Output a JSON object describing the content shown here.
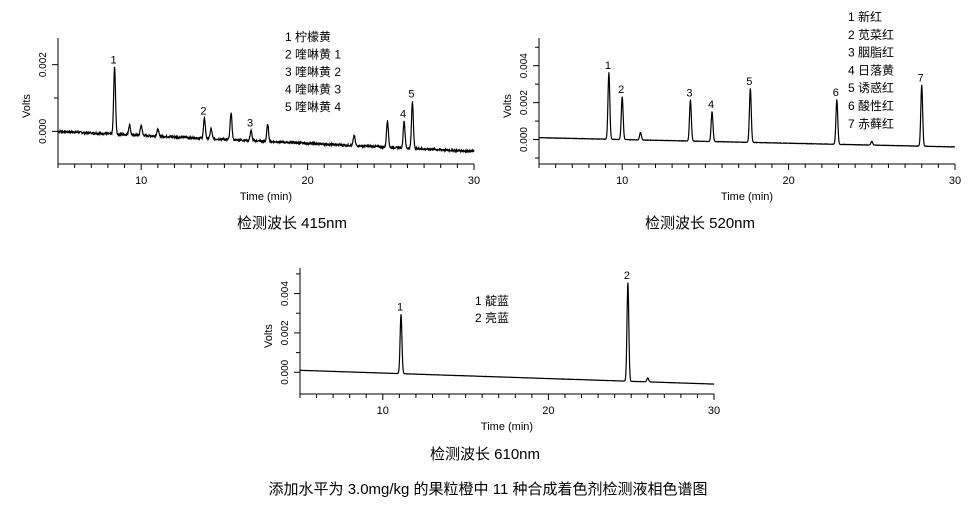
{
  "figure_caption": "添加水平为 3.0mg/kg 的果粒橙中 11 种合成着色剂检测液相色谱图",
  "chart_data": [
    {
      "type": "line",
      "caption": "检测波长 415nm",
      "xlabel": "Time (min)",
      "ylabel": "Volts",
      "xlim": [
        5,
        30
      ],
      "ylim": [
        -0.0008,
        0.0028
      ],
      "xticks": [
        10,
        20,
        30
      ],
      "xtick_labels": [
        "10",
        "20",
        "30"
      ],
      "yticks": [
        0,
        0.002
      ],
      "ytick_labels": [
        "0.000",
        "0.002"
      ],
      "baseline": {
        "x": [
          5,
          30
        ],
        "y": [
          0,
          -0.0006
        ]
      },
      "peaks": [
        {
          "label": "1",
          "x": 8.4,
          "height": 0.002
        },
        {
          "label": "",
          "x": 9.3,
          "height": 0.0003
        },
        {
          "label": "",
          "x": 10.0,
          "height": 0.0003
        },
        {
          "label": "",
          "x": 11.0,
          "height": 0.0002
        },
        {
          "label": "2",
          "x": 13.8,
          "height": 0.0006
        },
        {
          "label": "",
          "x": 14.2,
          "height": 0.0003
        },
        {
          "label": "",
          "x": 15.4,
          "height": 0.0008
        },
        {
          "label": "3",
          "x": 16.6,
          "height": 0.0003
        },
        {
          "label": "",
          "x": 17.6,
          "height": 0.0005
        },
        {
          "label": "",
          "x": 22.8,
          "height": 0.0003
        },
        {
          "label": "",
          "x": 24.8,
          "height": 0.0008
        },
        {
          "label": "4",
          "x": 25.8,
          "height": 0.0008
        },
        {
          "label": "5",
          "x": 26.3,
          "height": 0.0014
        }
      ],
      "legend": [
        "1 柠檬黄",
        "2 喹啉黄 1",
        "3 喹啉黄 2",
        "4 喹啉黄 3",
        "5 喹啉黄 4"
      ],
      "legend_position": "top-center",
      "noise": 3e-05
    },
    {
      "type": "line",
      "caption": "检测波长 520nm",
      "xlabel": "Time (min)",
      "ylabel": "Volts",
      "xlim": [
        5,
        30
      ],
      "ylim": [
        -0.001,
        0.0055
      ],
      "xticks": [
        10,
        20,
        30
      ],
      "xtick_labels": [
        "10",
        "20",
        "30"
      ],
      "yticks": [
        0,
        0.002,
        0.004
      ],
      "ytick_labels": [
        "0.000",
        "0.002",
        "0.004"
      ],
      "baseline": {
        "x": [
          5,
          30
        ],
        "y": [
          0.0001,
          -0.0004
        ]
      },
      "peaks": [
        {
          "label": "1",
          "x": 9.2,
          "height": 0.0036
        },
        {
          "label": "2",
          "x": 10.0,
          "height": 0.0023
        },
        {
          "label": "",
          "x": 11.1,
          "height": 0.0004
        },
        {
          "label": "3",
          "x": 14.1,
          "height": 0.0022
        },
        {
          "label": "4",
          "x": 15.4,
          "height": 0.0016
        },
        {
          "label": "5",
          "x": 17.7,
          "height": 0.0029
        },
        {
          "label": "6",
          "x": 22.9,
          "height": 0.0024
        },
        {
          "label": "",
          "x": 25.0,
          "height": 0.0002
        },
        {
          "label": "7",
          "x": 28.0,
          "height": 0.0033
        }
      ],
      "legend": [
        "1 新红",
        "2 苋菜红",
        "3 胭脂红",
        "4 日落黄",
        "5 诱惑红",
        "6 酸性红",
        "7 赤藓红"
      ],
      "legend_position": "top-right",
      "noise": 1e-05
    },
    {
      "type": "line",
      "caption": "检测波长 610nm",
      "xlabel": "Time (min)",
      "ylabel": "Volts",
      "xlim": [
        5,
        30
      ],
      "ylim": [
        -0.0008,
        0.0053
      ],
      "xticks": [
        10,
        20,
        30
      ],
      "xtick_labels": [
        "10",
        "20",
        "30"
      ],
      "yticks": [
        0,
        0.002,
        0.004
      ],
      "ytick_labels": [
        "0.000",
        "0.002",
        "0.004"
      ],
      "baseline": {
        "x": [
          5,
          30
        ],
        "y": [
          0.0001,
          -0.0006
        ]
      },
      "peaks": [
        {
          "label": "1",
          "x": 11.1,
          "height": 0.003
        },
        {
          "label": "2",
          "x": 24.8,
          "height": 0.005
        },
        {
          "label": "",
          "x": 26.0,
          "height": 0.0002
        }
      ],
      "legend": [
        "1 靛蓝",
        "2 亮蓝"
      ],
      "legend_position": "top-center",
      "noise": 5e-06
    }
  ]
}
